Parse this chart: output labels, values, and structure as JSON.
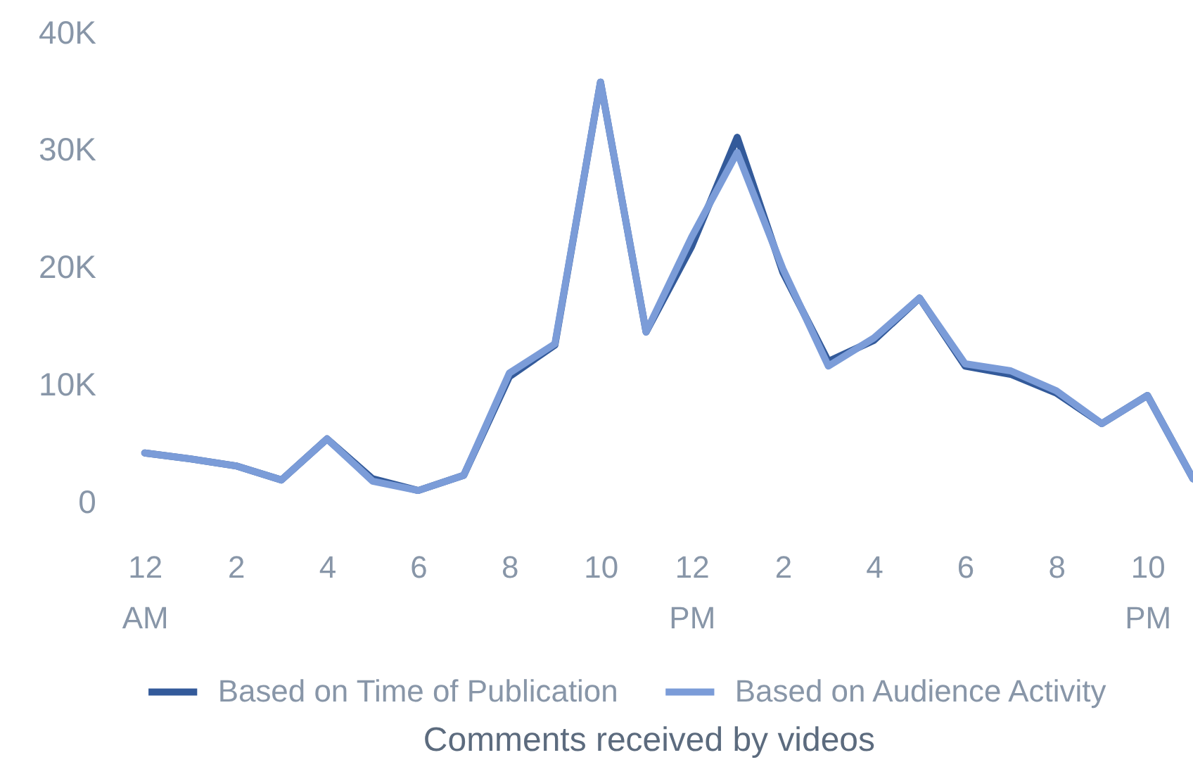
{
  "chart_data": {
    "type": "line",
    "title": "Comments received by videos",
    "categories": [
      "12 AM",
      null,
      "2",
      null,
      "4",
      null,
      "6",
      null,
      "8",
      null,
      "10",
      null,
      "12 PM",
      null,
      "2",
      null,
      "4",
      null,
      "6",
      null,
      "8",
      null,
      "10 PM",
      null
    ],
    "series": [
      {
        "name": "Based on Time of Publication",
        "color": "#335a9a",
        "values": [
          4200,
          3700,
          3100,
          1900,
          5400,
          2000,
          1000,
          2300,
          10700,
          13400,
          35800,
          14500,
          21800,
          31100,
          19600,
          12000,
          13800,
          17400,
          11600,
          10900,
          9300,
          6700,
          9100,
          2000
        ]
      },
      {
        "name": "Based on Audience Activity",
        "color": "#7b9cd8",
        "values": [
          4200,
          3700,
          3100,
          1900,
          5400,
          1800,
          1000,
          2300,
          11000,
          13500,
          35800,
          14500,
          22600,
          29800,
          19900,
          11600,
          14000,
          17400,
          11800,
          11200,
          9500,
          6700,
          9100,
          2000
        ]
      }
    ],
    "ylim": [
      0,
      40000
    ],
    "yticks": [
      0,
      {
        "value": 10000,
        "label": "10K"
      },
      {
        "value": 20000,
        "label": "20K"
      },
      {
        "value": 30000,
        "label": "30K"
      },
      {
        "value": 40000,
        "label": "40K"
      }
    ],
    "grid": false,
    "legend": "bottom"
  }
}
